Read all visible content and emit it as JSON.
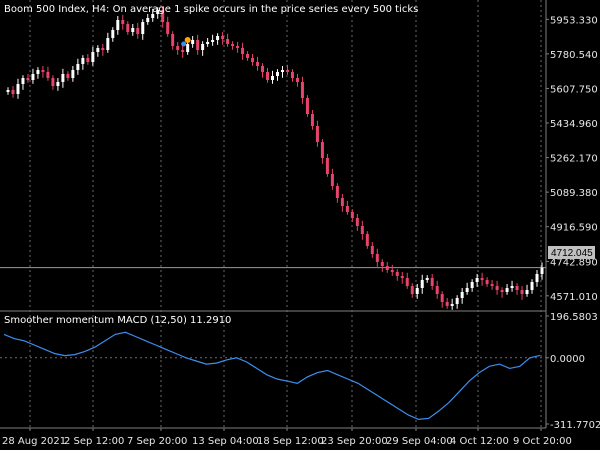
{
  "main_title": "Boom 500 Index, H4:  On average 1 spike occurs in the price series every 500 ticks",
  "indicator_title": "Smoother momentum MACD (12,50) 11.2910",
  "current_price_label": "4712.045",
  "chart_data": [
    {
      "type": "candlestick",
      "y_ticks": [
        "5953.330",
        "5780.540",
        "5607.750",
        "5434.960",
        "5262.170",
        "5089.380",
        "4916.590",
        "4742.890",
        "4571.010"
      ],
      "ylim": [
        4500,
        6020
      ],
      "current_price": 4712.045,
      "colors": {
        "bull": "#ffffff",
        "bear": "#e8436a"
      },
      "close": [
        5600,
        5580,
        5630,
        5660,
        5650,
        5680,
        5700,
        5690,
        5660,
        5620,
        5640,
        5680,
        5660,
        5700,
        5730,
        5760,
        5740,
        5790,
        5810,
        5800,
        5860,
        5900,
        5950,
        5930,
        5890,
        5910,
        5880,
        5940,
        5960,
        5980,
        6000,
        5940,
        5880,
        5820,
        5800,
        5790,
        5830,
        5850,
        5800,
        5830,
        5840,
        5850,
        5870,
        5855,
        5830,
        5820,
        5810,
        5780,
        5760,
        5740,
        5720,
        5690,
        5650,
        5670,
        5690,
        5700,
        5690,
        5660,
        5640,
        5560,
        5480,
        5420,
        5340,
        5260,
        5180,
        5120,
        5060,
        5020,
        4990,
        4960,
        4920,
        4880,
        4820,
        4780,
        4740,
        4720,
        4700,
        4690,
        4670,
        4660,
        4620,
        4580,
        4610,
        4650,
        4660,
        4620,
        4580,
        4540,
        4520,
        4530,
        4560,
        4590,
        4610,
        4640,
        4660,
        4650,
        4630,
        4620,
        4600,
        4590,
        4610,
        4620,
        4600,
        4580,
        4600,
        4640,
        4680,
        4712
      ]
    },
    {
      "type": "line",
      "name": "Smoother momentum MACD (12,50)",
      "y_ticks": [
        "196.5803",
        "0.0000",
        "-311.7702"
      ],
      "ylim": [
        -311.7702,
        196.5803
      ],
      "line_color": "#3d8ef0",
      "values": [
        110,
        90,
        80,
        60,
        40,
        20,
        10,
        15,
        30,
        50,
        80,
        110,
        120,
        100,
        80,
        60,
        40,
        20,
        0,
        -15,
        -30,
        -25,
        -10,
        0,
        -20,
        -50,
        -80,
        -100,
        -110,
        -120,
        -90,
        -70,
        -60,
        -80,
        -100,
        -120,
        -150,
        -180,
        -210,
        -240,
        -270,
        -290,
        -285,
        -250,
        -210,
        -160,
        -110,
        -70,
        -40,
        -30,
        -50,
        -40,
        0,
        11
      ],
      "x_tick_labels": [
        "28 Aug 2021",
        "2 Sep 12:00",
        "7 Sep 20:00",
        "13 Sep 04:00",
        "18 Sep 12:00",
        "23 Sep 20:00",
        "29 Sep 04:00",
        "4 Oct 12:00",
        "9 Oct 20:00"
      ]
    }
  ]
}
